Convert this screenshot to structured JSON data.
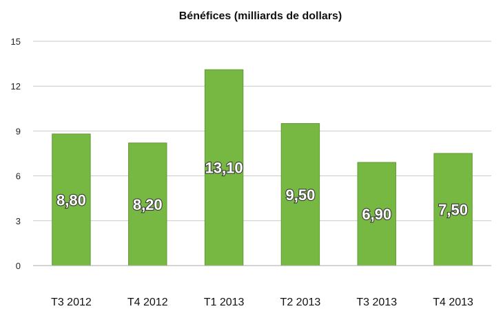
{
  "chart_data": {
    "type": "bar",
    "title": "Bénéfices (milliards de dollars)",
    "xlabel": "",
    "ylabel": "",
    "categories": [
      "T3 2012",
      "T4 2012",
      "T1 2013",
      "T2 2013",
      "T3 2013",
      "T4 2013"
    ],
    "values": [
      8.8,
      8.2,
      13.1,
      9.5,
      6.9,
      7.5
    ],
    "data_labels": [
      "8,80",
      "8,20",
      "13,10",
      "9,50",
      "6,90",
      "7,50"
    ],
    "ylim": [
      0,
      15
    ],
    "yticks": [
      0,
      3,
      6,
      9,
      12,
      15
    ],
    "ytick_labels": [
      "0",
      "3",
      "6",
      "9",
      "12",
      "15"
    ],
    "grid": true,
    "legend": "none",
    "bar_color": "#77b843",
    "bar_edge_color": "#5f9a33"
  }
}
